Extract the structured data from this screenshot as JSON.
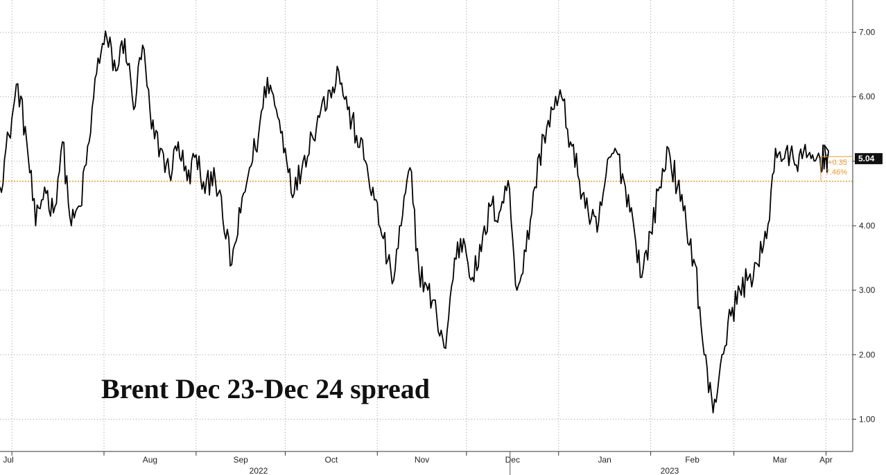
{
  "chart_data": {
    "type": "line",
    "title": "Brent Dec 23-Dec 24 spread",
    "xlabel": "",
    "ylabel": "",
    "y_ticks": [
      "1.00",
      "2.00",
      "3.00",
      "4.00",
      "5.00",
      "6.00",
      "7.00"
    ],
    "y_tick_values": [
      1,
      2,
      3,
      4,
      5,
      6,
      7
    ],
    "ylim": [
      0.5,
      7.5
    ],
    "x_ticks": [
      "Jul",
      "Aug",
      "Sep",
      "Oct",
      "Nov",
      "Dec",
      "Jan",
      "Feb",
      "Mar",
      "Apr"
    ],
    "x_tick_dates": [
      "2022-07-01",
      "2022-08-01",
      "2022-09-01",
      "2022-10-01",
      "2022-11-01",
      "2022-12-01",
      "2023-01-01",
      "2023-02-01",
      "2023-03-01",
      "2023-04-01"
    ],
    "year_labels": [
      "2022",
      "2023"
    ],
    "xlim": [
      "2022-06-27",
      "2023-04-10"
    ],
    "grid": true,
    "reference_line": {
      "value": 4.69,
      "color": "#e69a2e"
    },
    "last_value": {
      "label": "5.04",
      "value": 5.04
    },
    "change": {
      "abs": "+0.35",
      "pct": "7.46%"
    },
    "series": [
      {
        "color": "#000000",
        "x": [
          "2022-06-27",
          "2022-06-30",
          "2022-07-03",
          "2022-07-06",
          "2022-07-09",
          "2022-07-12",
          "2022-07-15",
          "2022-07-18",
          "2022-07-21",
          "2022-07-24",
          "2022-07-27",
          "2022-07-30",
          "2022-08-02",
          "2022-08-05",
          "2022-08-08",
          "2022-08-11",
          "2022-08-14",
          "2022-08-17",
          "2022-08-20",
          "2022-08-23",
          "2022-08-26",
          "2022-08-29",
          "2022-09-01",
          "2022-09-04",
          "2022-09-07",
          "2022-09-10",
          "2022-09-13",
          "2022-09-16",
          "2022-09-19",
          "2022-09-22",
          "2022-09-25",
          "2022-09-28",
          "2022-10-01",
          "2022-10-04",
          "2022-10-07",
          "2022-10-10",
          "2022-10-13",
          "2022-10-16",
          "2022-10-19",
          "2022-10-22",
          "2022-10-25",
          "2022-10-28",
          "2022-10-31",
          "2022-11-03",
          "2022-11-06",
          "2022-11-09",
          "2022-11-12",
          "2022-11-15",
          "2022-11-18",
          "2022-11-21",
          "2022-11-24",
          "2022-11-27",
          "2022-11-30",
          "2022-12-03",
          "2022-12-06",
          "2022-12-09",
          "2022-12-12",
          "2022-12-15",
          "2022-12-18",
          "2022-12-21",
          "2022-12-24",
          "2022-12-27",
          "2022-12-30",
          "2023-01-02",
          "2023-01-05",
          "2023-01-08",
          "2023-01-11",
          "2023-01-14",
          "2023-01-17",
          "2023-01-20",
          "2023-01-23",
          "2023-01-26",
          "2023-01-29",
          "2023-02-01",
          "2023-02-04",
          "2023-02-07",
          "2023-02-10",
          "2023-02-13",
          "2023-02-16",
          "2023-02-19",
          "2023-02-22",
          "2023-02-25",
          "2023-02-28",
          "2023-03-03",
          "2023-03-06",
          "2023-03-09",
          "2023-03-12",
          "2023-03-15",
          "2023-03-18",
          "2023-03-21",
          "2023-03-24",
          "2023-03-27",
          "2023-03-30",
          "2023-04-01",
          "2023-04-02"
        ],
        "values": [
          4.6,
          5.4,
          6.2,
          5.3,
          4.0,
          4.6,
          4.2,
          5.3,
          4.0,
          4.3,
          5.3,
          6.6,
          6.9,
          6.4,
          6.9,
          5.8,
          6.8,
          5.5,
          5.2,
          4.8,
          5.3,
          4.7,
          5.1,
          4.5,
          4.9,
          4.1,
          3.4,
          4.2,
          4.9,
          5.4,
          6.3,
          5.8,
          5.2,
          4.5,
          5.0,
          5.4,
          5.8,
          6.1,
          6.4,
          5.8,
          5.4,
          5.0,
          4.4,
          3.8,
          3.1,
          4.0,
          4.9,
          3.3,
          3.0,
          2.6,
          2.1,
          3.5,
          3.8,
          3.2,
          3.6,
          4.3,
          4.2,
          4.7,
          3.0,
          3.6,
          4.6,
          5.4,
          5.8,
          6.0,
          5.3,
          4.7,
          4.2,
          3.9,
          4.8,
          5.2,
          4.7,
          4.1,
          3.2,
          3.9,
          4.6,
          5.2,
          4.6,
          4.0,
          3.4,
          2.0,
          1.1,
          2.0,
          2.6,
          3.0,
          3.2,
          3.4,
          3.8,
          5.2,
          5.04,
          5.04,
          5.04,
          5.04,
          5.04,
          5.04,
          5.04
        ]
      }
    ]
  }
}
